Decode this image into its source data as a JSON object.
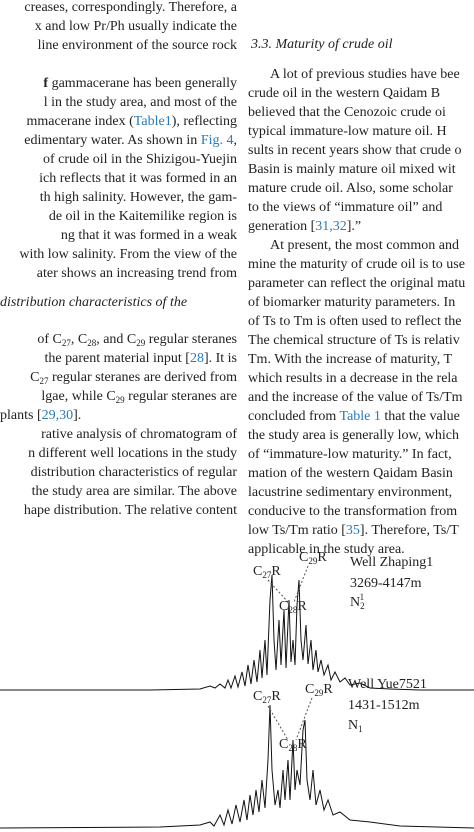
{
  "left_column": {
    "paragraph_1": [
      "creases, correspondingly. Therefore, a",
      "x and low Pr/Ph usually indicate the",
      "line environment of the source rock"
    ],
    "paragraph_2": [
      [
        {
          "bold": "f"
        },
        " gammacerane has been generally"
      ],
      "l in the study area, and most of the",
      [
        "mmacerane index (",
        {
          "link": "Table1"
        },
        "), reflecting"
      ],
      [
        "edimentary water. As shown in ",
        {
          "link": "Fig. 4"
        },
        ","
      ],
      "of crude oil in the Shizigou-Yuejin",
      "ich reflects that it was formed in an",
      "th high salinity. However, the gam-",
      "de oil in the Kaitemilike region is",
      "ng that it was formed in a weak",
      "with low salinity. From the view of the",
      "ater shows an increasing trend from"
    ],
    "section_heading": "distribution characteristics of the",
    "paragraph_3": [
      [
        "of C",
        {
          "sub": "27"
        },
        ", C",
        {
          "sub": "28"
        },
        ", and C",
        {
          "sub": "29"
        },
        " regular steranes"
      ],
      [
        "the parent material input [",
        {
          "link": "28"
        },
        "]. It is"
      ],
      [
        "C",
        {
          "sub": "27"
        },
        " regular steranes are derived from"
      ],
      [
        "lgae, while C",
        {
          "sub": "29"
        },
        " regular steranes are"
      ],
      [
        "plants [",
        {
          "link": "29,30"
        },
        "]."
      ]
    ],
    "paragraph_4": [
      "rative analysis of chromatogram of",
      "n different well locations in the study",
      "distribution characteristics of regular",
      "the study area are similar. The above",
      "hape distribution. The relative content"
    ]
  },
  "right_column": {
    "section_heading": "3.3. Maturity of crude oil",
    "paragraph_1": [
      "A lot of previous studies have bee",
      "crude oil in the western Qaidam B",
      "believed that the Cenozoic crude oi",
      "typical immature-low mature oil. H",
      "sults in recent years show that crude o",
      "Basin is mainly mature oil mixed wit",
      "mature crude oil. Also, some scholar",
      "to the views of “immature oil” and",
      [
        "generation [",
        {
          "link": "31,32"
        },
        "].”"
      ]
    ],
    "paragraph_2": [
      "At present, the most common and",
      "mine the maturity of crude oil is to use",
      "parameter can reflect the original matu",
      "of biomarker maturity parameters. In",
      "of Ts to Tm is often used to reflect the",
      "The chemical structure of Ts is relativ",
      "Tm. With the increase of maturity, T",
      "which results in a decrease in the rela",
      "and the increase of the value of Ts/Tm",
      [
        "concluded from ",
        {
          "link": "Table 1"
        },
        " that the value"
      ],
      "the study area is generally low, which",
      "of “immature-low maturity.” In fact,",
      "mation of the western Qaidam Basin",
      "lacustrine sedimentary environment,",
      "conducive to the transformation from",
      [
        "low Ts/Tm ratio [",
        {
          "link": "35"
        },
        "]. Therefore, Ts/T"
      ],
      "applicable in the study area."
    ]
  },
  "figure": {
    "panel_1": {
      "peak_c27": [
        "C",
        {
          "sub": "27"
        },
        "R"
      ],
      "peak_c29": [
        "C",
        {
          "sub": "29"
        },
        "R"
      ],
      "peak_c28": [
        "C",
        {
          "sub": "28"
        },
        "R"
      ],
      "well": "Well Zhaping1",
      "depth": "3269-4147m",
      "formation": [
        "N",
        {
          "sub": "2"
        },
        {
          "sup": "1"
        }
      ]
    },
    "panel_2": {
      "peak_c27": [
        "C",
        {
          "sub": "27"
        },
        "R"
      ],
      "peak_c29": [
        "C",
        {
          "sub": "29"
        },
        "R"
      ],
      "peak_c28": [
        "C",
        {
          "sub": "28"
        },
        "R"
      ],
      "well": "Well Yue7521",
      "depth": "1431-1512m",
      "formation": [
        "N",
        {
          "sub": "1"
        }
      ]
    }
  }
}
